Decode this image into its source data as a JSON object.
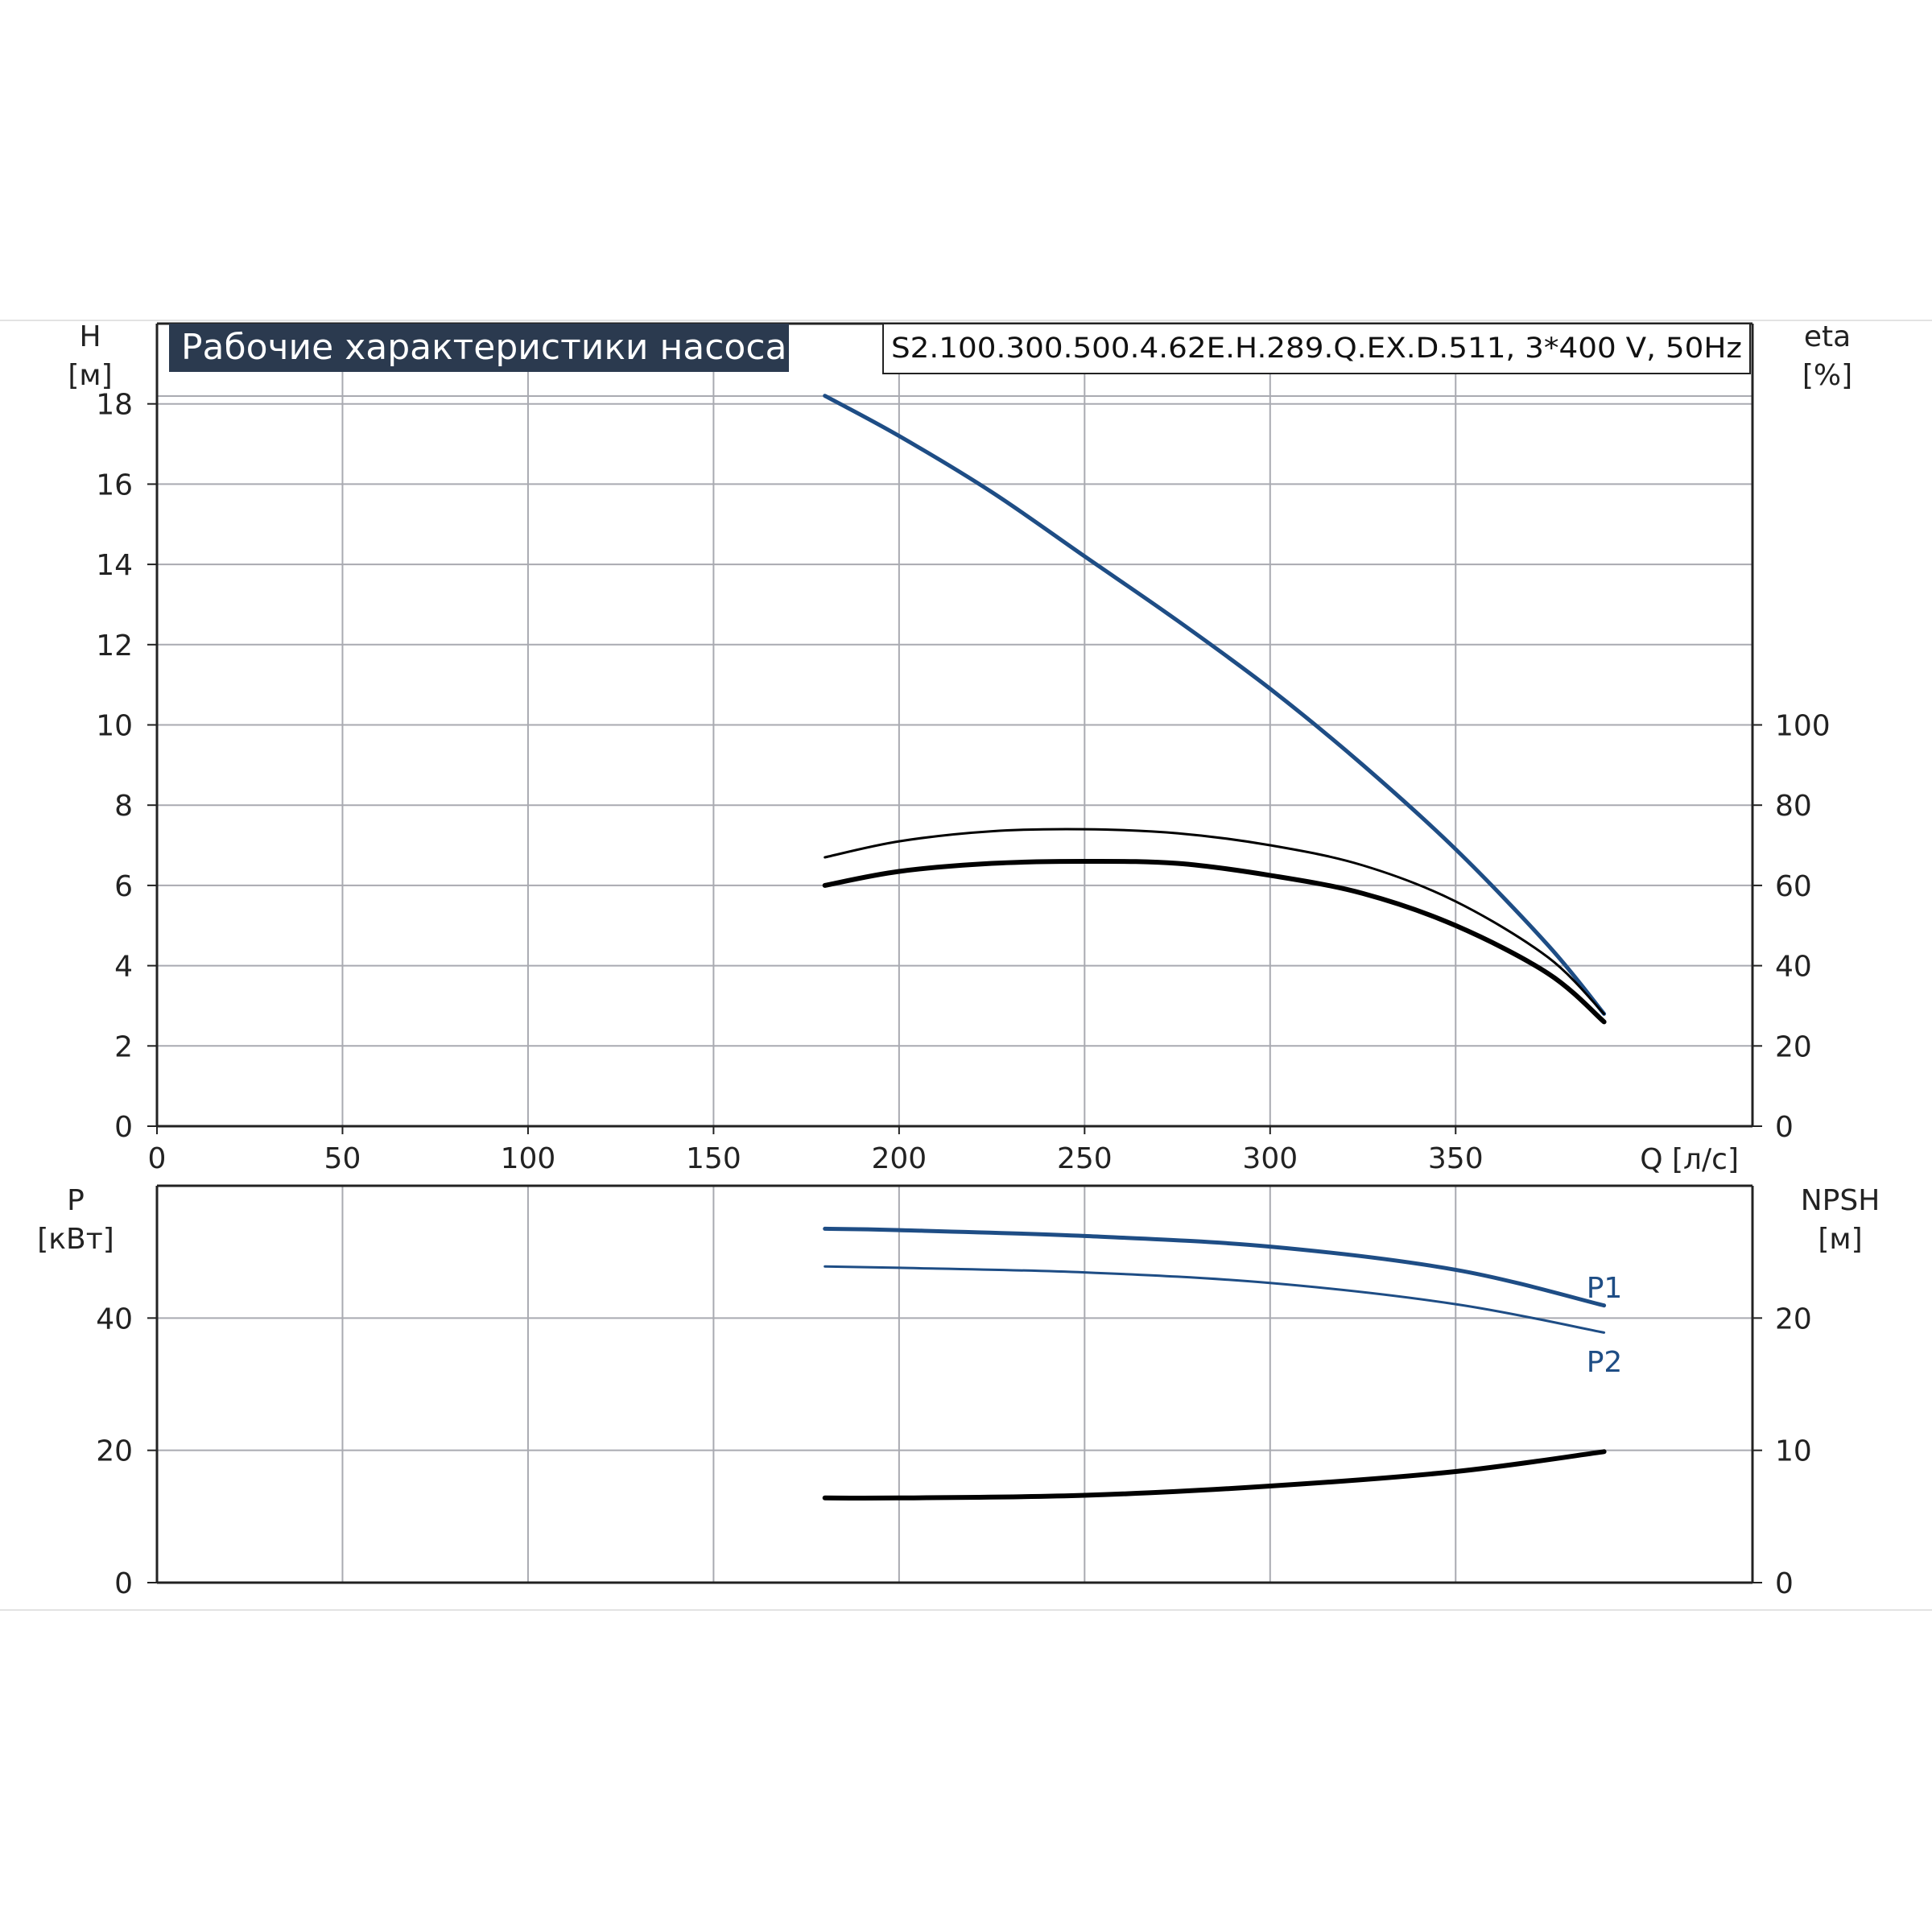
{
  "chart_title": "Рабочие характеристики насоса",
  "pump_model": "S2.100.300.500.4.62E.H.289.Q.EX.D.511, 3*400 V, 50Hz",
  "colors": {
    "blue": "#1e4d85",
    "black": "#000000",
    "grid": "#a9aab1",
    "title_bg": "#2b3a4f"
  },
  "chart_data": [
    {
      "type": "line",
      "name": "top",
      "x_label": "Q [л/с]",
      "x_ticks": [
        "0",
        "50",
        "100",
        "150",
        "200",
        "250",
        "300",
        "350"
      ],
      "xlim": [
        0,
        430
      ],
      "y_left_label": [
        "H",
        "[м]"
      ],
      "y_left_ticks": [
        "0",
        "2",
        "4",
        "6",
        "8",
        "10",
        "12",
        "14",
        "16",
        "18"
      ],
      "ylim_left": [
        0,
        20
      ],
      "y_right_label": [
        "eta",
        "[%]"
      ],
      "y_right_ticks": [
        "0",
        "20",
        "40",
        "60",
        "80",
        "100"
      ],
      "ylim_right": [
        0,
        200
      ],
      "grid": true,
      "series": [
        {
          "role": "H",
          "axis": "left",
          "color": "blue",
          "width": 5,
          "x": [
            180,
            200,
            225,
            250,
            275,
            300,
            325,
            350,
            375,
            390
          ],
          "y": [
            18.2,
            17.2,
            15.8,
            14.2,
            12.6,
            10.9,
            9.0,
            6.9,
            4.5,
            2.8
          ]
        },
        {
          "role": "eta_top",
          "axis": "right",
          "color": "black",
          "width": 3,
          "x": [
            180,
            200,
            225,
            250,
            275,
            300,
            325,
            350,
            375,
            390
          ],
          "y": [
            67,
            71,
            73.5,
            74,
            73,
            70,
            65,
            56,
            42,
            28
          ]
        },
        {
          "role": "eta_bottom",
          "axis": "right",
          "color": "black",
          "width": 6,
          "x": [
            180,
            200,
            225,
            250,
            275,
            300,
            325,
            350,
            375,
            390
          ],
          "y": [
            60,
            63.5,
            65.5,
            66,
            65.5,
            62.5,
            58,
            50,
            38,
            26
          ]
        }
      ]
    },
    {
      "type": "line",
      "name": "bottom",
      "x_ticks": [
        "0",
        "50",
        "100",
        "150",
        "200",
        "250",
        "300",
        "350"
      ],
      "xlim": [
        0,
        430
      ],
      "y_left_label": [
        "P",
        "[кВт]"
      ],
      "y_left_ticks": [
        "0",
        "20",
        "40"
      ],
      "ylim_left": [
        0,
        60
      ],
      "y_right_label": [
        "NPSH",
        "[м]"
      ],
      "y_right_ticks": [
        "0",
        "10",
        "20"
      ],
      "ylim_right": [
        0,
        30
      ],
      "grid": true,
      "series": [
        {
          "name": "P1",
          "axis": "left",
          "color": "blue",
          "width": 5,
          "x": [
            180,
            200,
            250,
            300,
            350,
            390
          ],
          "y": [
            53.5,
            53.3,
            52.4,
            50.8,
            47.3,
            41.9
          ]
        },
        {
          "name": "P2",
          "axis": "left",
          "color": "blue",
          "width": 3,
          "x": [
            180,
            200,
            250,
            300,
            350,
            390
          ],
          "y": [
            47.8,
            47.6,
            46.9,
            45.3,
            42.1,
            37.8
          ]
        },
        {
          "role": "NPSH",
          "axis": "right",
          "color": "black",
          "width": 6,
          "x": [
            180,
            200,
            250,
            300,
            350,
            390
          ],
          "y": [
            6.4,
            6.4,
            6.6,
            7.3,
            8.4,
            9.9
          ]
        }
      ]
    }
  ]
}
